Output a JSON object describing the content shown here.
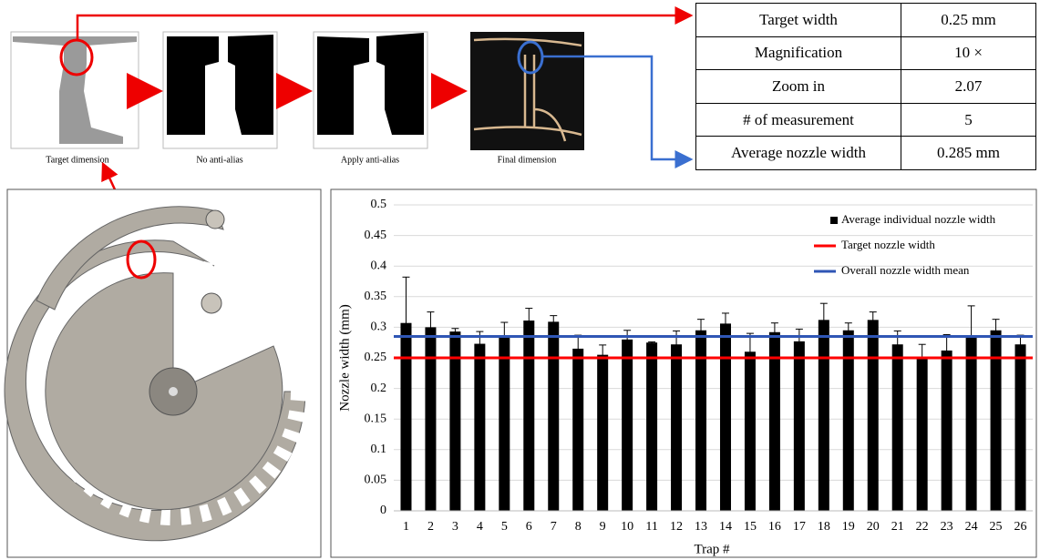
{
  "figure": {
    "panels": [
      {
        "caption": "Target dimension"
      },
      {
        "caption": "No anti-alias"
      },
      {
        "caption": "Apply anti-alias"
      },
      {
        "caption": "Final dimension"
      }
    ]
  },
  "table": {
    "rows": [
      [
        "Target width",
        "0.25 mm"
      ],
      [
        "Magnification",
        "10 ×"
      ],
      [
        "Zoom in",
        "2.07"
      ],
      [
        "# of measurement",
        "5"
      ],
      [
        "Average nozzle width",
        "0.285 mm"
      ]
    ]
  },
  "chart_data": {
    "type": "bar",
    "x_label": "Trap #",
    "y_label": "Nozzle width (mm)",
    "categories": [
      "1",
      "2",
      "3",
      "4",
      "5",
      "6",
      "7",
      "8",
      "9",
      "10",
      "11",
      "12",
      "13",
      "14",
      "15",
      "16",
      "17",
      "18",
      "19",
      "20",
      "21",
      "22",
      "23",
      "24",
      "25",
      "26"
    ],
    "series": [
      {
        "name": "Average individual nozzle width",
        "color": "#000000",
        "values": [
          0.307,
          0.3,
          0.293,
          0.273,
          0.283,
          0.311,
          0.309,
          0.265,
          0.255,
          0.28,
          0.275,
          0.272,
          0.295,
          0.306,
          0.26,
          0.292,
          0.277,
          0.312,
          0.295,
          0.312,
          0.272,
          0.25,
          0.262,
          0.285,
          0.295,
          0.272
        ],
        "errors": [
          0.075,
          0.025,
          0.005,
          0.02,
          0.025,
          0.02,
          0.01,
          0.022,
          0.016,
          0.015,
          0.001,
          0.022,
          0.018,
          0.017,
          0.03,
          0.015,
          0.02,
          0.027,
          0.012,
          0.013,
          0.022,
          0.022,
          0.026,
          0.05,
          0.018,
          0.015
        ]
      }
    ],
    "lines": [
      {
        "name": "Target nozzle width",
        "color": "#ff0000",
        "value": 0.25
      },
      {
        "name": "Overall nozzle width mean",
        "color": "#2f56b5",
        "value": 0.285
      }
    ],
    "ylim": [
      0,
      0.5
    ],
    "yticks": [
      0,
      0.05,
      0.1,
      0.15,
      0.2,
      0.25,
      0.3,
      0.35,
      0.4,
      0.45,
      0.5
    ],
    "grid": true
  }
}
